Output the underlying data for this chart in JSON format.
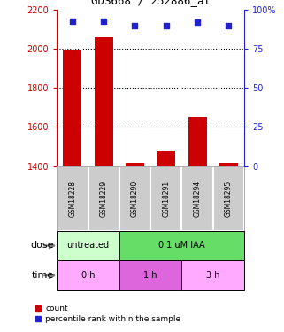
{
  "title": "GDS668 / 252886_at",
  "samples": [
    "GSM18228",
    "GSM18229",
    "GSM18290",
    "GSM18291",
    "GSM18294",
    "GSM18295"
  ],
  "bar_values": [
    1995,
    2060,
    1415,
    1480,
    1650,
    1415
  ],
  "bar_base": 1400,
  "percentile_values": [
    93,
    93,
    90,
    90,
    92,
    90
  ],
  "bar_color": "#cc0000",
  "percentile_color": "#2222cc",
  "ylim_left": [
    1400,
    2200
  ],
  "ylim_right": [
    0,
    100
  ],
  "yticks_left": [
    1400,
    1600,
    1800,
    2000,
    2200
  ],
  "yticks_right": [
    0,
    25,
    50,
    75,
    100
  ],
  "grid_yticks": [
    1600,
    1800,
    2000
  ],
  "dose_labels": [
    {
      "text": "untreated",
      "cols": [
        0,
        1
      ],
      "color": "#ccffcc"
    },
    {
      "text": "0.1 uM IAA",
      "cols": [
        2,
        3,
        4,
        5
      ],
      "color": "#66dd66"
    }
  ],
  "time_labels": [
    {
      "text": "0 h",
      "cols": [
        0,
        1
      ],
      "color": "#ffaaff"
    },
    {
      "text": "1 h",
      "cols": [
        2,
        3
      ],
      "color": "#dd66dd"
    },
    {
      "text": "3 h",
      "cols": [
        4,
        5
      ],
      "color": "#ffaaff"
    }
  ],
  "dose_row_label": "dose",
  "time_row_label": "time",
  "legend_bar_label": "count",
  "legend_pct_label": "percentile rank within the sample",
  "bg_color": "#ffffff",
  "sample_bg": "#cccccc"
}
